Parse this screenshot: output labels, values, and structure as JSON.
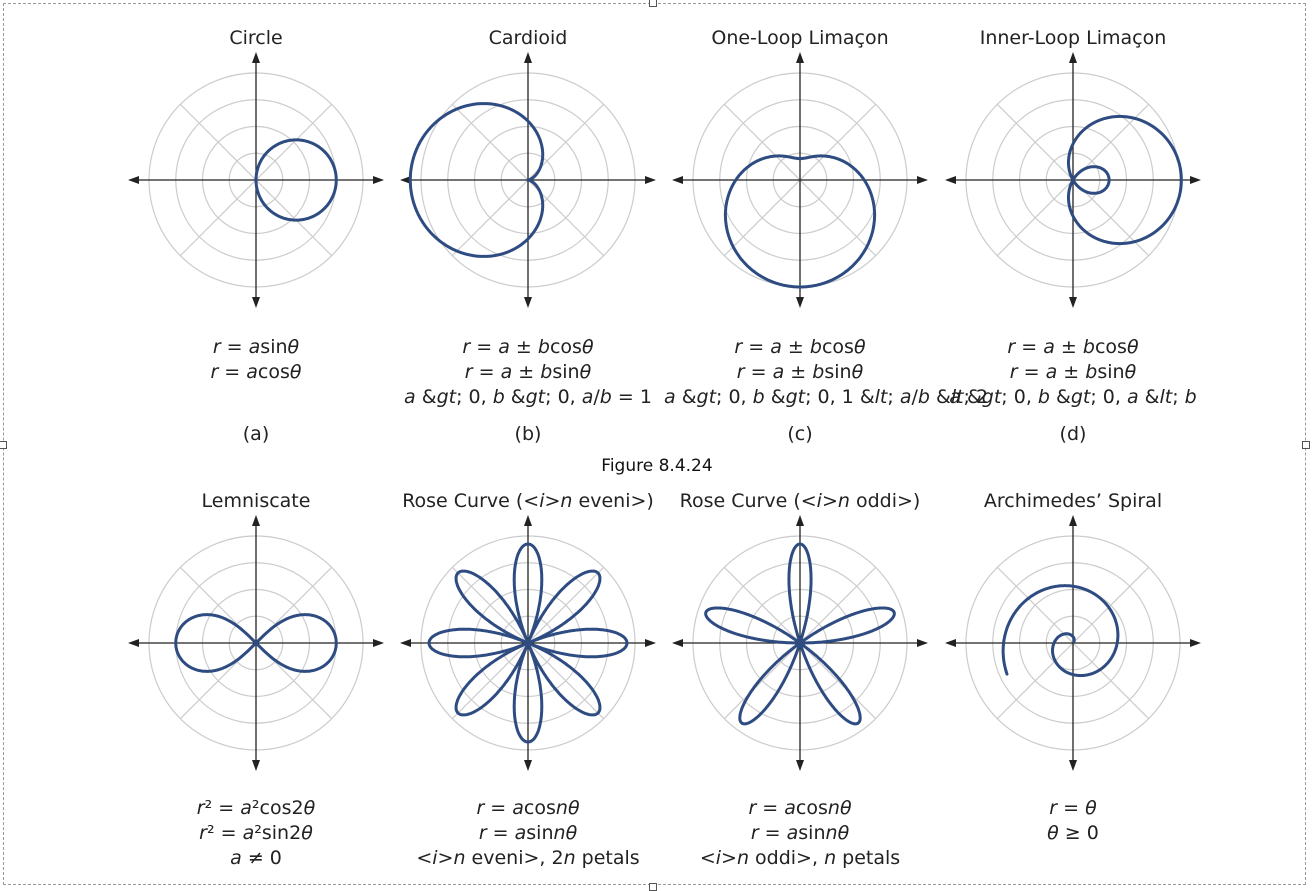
{
  "figure_caption": "Figure 8.4.24",
  "colors": {
    "curve": "#2e4c82",
    "grid": "#cccccc",
    "axis": "#222222"
  },
  "panels": [
    {
      "title": "Circle",
      "formulas": [
        "r = asinθ",
        "r = acosθ"
      ],
      "label": "(a)",
      "curve": {
        "type": "circle",
        "a": 1.5
      }
    },
    {
      "title": "Cardioid",
      "formulas": [
        "r = a ± bcosθ",
        "r = a ± bsinθ",
        "a > 0, b > 0, a/b = 1"
      ],
      "label": "(b)",
      "curve": {
        "type": "cardioid",
        "a": 1,
        "b": 1
      }
    },
    {
      "title": "One-Loop Limaçon",
      "formulas": [
        "r = a ± bcosθ",
        "r = a ± bsinθ",
        "a > 0, b > 0, 1 < a/b < 2"
      ],
      "label": "(c)",
      "curve": {
        "type": "limacon_one_loop",
        "a": 3,
        "b": 2
      }
    },
    {
      "title": "Inner-Loop Limaçon",
      "formulas": [
        "r = a ± bcosθ",
        "r = a ± bsinθ",
        "a > 0, b > 0, a < b"
      ],
      "label": "(d)",
      "curve": {
        "type": "limacon_inner_loop",
        "a": 1,
        "b": 2
      }
    },
    {
      "title": "Lemniscate",
      "formulas": [
        "r² = a²cos2θ",
        "r² = a²sin2θ",
        "a ≠ 0"
      ],
      "label": "",
      "curve": {
        "type": "lemniscate",
        "a": 3
      }
    },
    {
      "title": "Rose Curve (n even)",
      "formulas": [
        "r = acosnθ",
        "r = asinnθ",
        "n even, 2n petals"
      ],
      "label": "",
      "curve": {
        "type": "rose",
        "n": 4
      }
    },
    {
      "title": "Rose Curve (n odd)",
      "formulas": [
        "r = acosnθ",
        "r = asinnθ",
        "n odd, n petals"
      ],
      "label": "",
      "curve": {
        "type": "rose",
        "n": 5
      }
    },
    {
      "title": "Archimedes’ Spiral",
      "formulas": [
        "r = θ",
        "θ ≥ 0"
      ],
      "label": "",
      "curve": {
        "type": "spiral"
      }
    }
  ]
}
